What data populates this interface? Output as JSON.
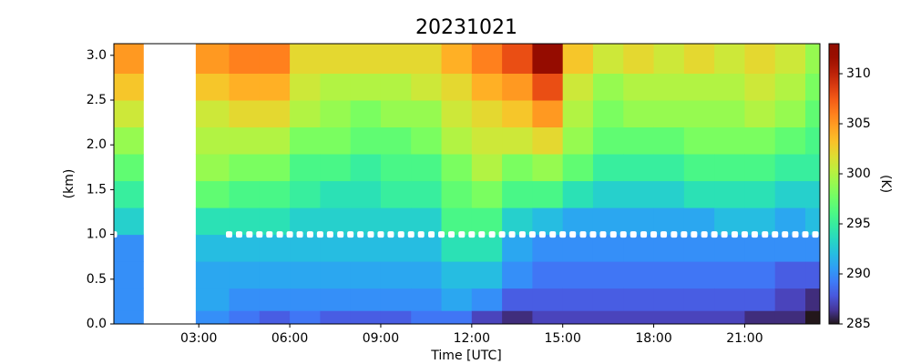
{
  "chart_data": {
    "type": "heatmap",
    "title": "20231021",
    "xlabel": "Time [UTC]",
    "ylabel": "(km)",
    "colorbar_label": "(K)",
    "colormap": "turbo",
    "xlim": [
      0.2,
      23.48
    ],
    "ylim": [
      0,
      3.13
    ],
    "clim": [
      285,
      313
    ],
    "xticks": [
      {
        "value": 3,
        "label": "03:00"
      },
      {
        "value": 6,
        "label": "06:00"
      },
      {
        "value": 9,
        "label": "09:00"
      },
      {
        "value": 12,
        "label": "12:00"
      },
      {
        "value": 15,
        "label": "15:00"
      },
      {
        "value": 18,
        "label": "18:00"
      },
      {
        "value": 21,
        "label": "21:00"
      }
    ],
    "yticks": [
      {
        "value": 0,
        "label": "0.0"
      },
      {
        "value": 0.5,
        "label": "0.5"
      },
      {
        "value": 1,
        "label": "1.0"
      },
      {
        "value": 1.5,
        "label": "1.5"
      },
      {
        "value": 2,
        "label": "2.0"
      },
      {
        "value": 2.5,
        "label": "2.5"
      },
      {
        "value": 3,
        "label": "3.0"
      }
    ],
    "cticks": [
      285,
      290,
      295,
      300,
      305,
      310
    ],
    "xbins": [
      0.2,
      1.17,
      2.9,
      4,
      5,
      6,
      7,
      8,
      9,
      10,
      11,
      12,
      13,
      14,
      15,
      16,
      17,
      18,
      19,
      20,
      21,
      22,
      23,
      23.48
    ],
    "ybins": [
      0,
      0.15,
      0.4,
      0.7,
      1.0,
      1.3,
      1.6,
      1.9,
      2.2,
      2.5,
      2.8,
      3.13
    ],
    "values": [
      [
        290,
        290,
        290,
        290,
        293,
        295,
        297,
        299,
        301,
        303,
        305
      ],
      [
        null,
        null,
        null,
        null,
        null,
        null,
        null,
        null,
        null,
        null,
        null
      ],
      [
        290,
        291,
        291,
        292,
        294,
        297,
        299,
        300,
        301,
        303,
        305
      ],
      [
        289,
        290,
        291,
        292,
        294,
        296,
        298,
        300,
        302,
        304,
        306
      ],
      [
        288,
        290,
        291,
        292,
        294,
        296,
        298,
        300,
        302,
        304,
        306
      ],
      [
        289,
        290,
        291,
        292,
        293,
        295,
        296,
        298,
        300,
        301,
        302
      ],
      [
        288,
        290,
        291,
        292,
        293,
        294,
        296,
        298,
        299,
        300,
        302
      ],
      [
        288,
        290,
        291,
        292,
        293,
        294,
        295,
        297,
        298,
        300,
        302
      ],
      [
        288,
        290,
        291,
        292,
        293,
        295,
        296,
        297,
        299,
        300,
        302
      ],
      [
        289,
        290,
        291,
        292,
        293,
        295,
        296,
        298,
        299,
        301,
        302
      ],
      [
        289,
        291,
        292,
        294,
        296,
        297,
        298,
        300,
        301,
        302,
        304
      ],
      [
        287,
        290,
        292,
        294,
        296,
        298,
        300,
        301,
        302,
        304,
        306
      ],
      [
        286,
        288,
        290,
        291,
        293,
        296,
        298,
        301,
        303,
        305,
        308
      ],
      [
        287,
        288,
        289,
        290,
        292,
        296,
        299,
        302,
        305,
        308,
        312
      ],
      [
        287,
        288,
        289,
        290,
        291,
        294,
        297,
        299,
        300,
        301,
        303
      ],
      [
        287,
        288,
        289,
        290,
        291,
        293,
        295,
        297,
        298,
        299,
        301
      ],
      [
        287,
        288,
        289,
        290,
        291,
        293,
        295,
        297,
        299,
        300,
        302
      ],
      [
        287,
        288,
        289,
        290,
        291,
        293,
        295,
        297,
        299,
        300,
        301
      ],
      [
        287,
        288,
        289,
        290,
        291,
        294,
        296,
        298,
        299,
        300,
        302
      ],
      [
        287,
        288,
        289,
        290,
        292,
        294,
        296,
        298,
        299,
        300,
        301
      ],
      [
        286,
        288,
        289,
        290,
        292,
        294,
        296,
        298,
        300,
        301,
        302
      ],
      [
        286,
        287,
        288,
        290,
        291,
        293,
        295,
        297,
        299,
        300,
        301
      ],
      [
        285,
        286,
        288,
        290,
        292,
        293,
        295,
        296,
        297,
        298,
        299
      ]
    ],
    "markers": {
      "color": "#ffffff",
      "x": [
        0.2,
        4.0,
        4.33,
        4.67,
        5.0,
        5.33,
        5.67,
        6.0,
        6.33,
        6.67,
        7.0,
        7.33,
        7.67,
        8.0,
        8.33,
        8.67,
        9.0,
        9.33,
        9.67,
        10.0,
        10.33,
        10.67,
        11.0,
        11.33,
        11.67,
        12.0,
        12.33,
        12.67,
        13.0,
        13.33,
        13.67,
        14.0,
        14.33,
        14.67,
        15.0,
        15.33,
        15.67,
        16.0,
        16.33,
        16.67,
        17.0,
        17.33,
        17.67,
        18.0,
        18.33,
        18.67,
        19.0,
        19.33,
        19.67,
        20.0,
        20.33,
        20.67,
        21.0,
        21.33,
        21.67,
        22.0,
        22.33,
        22.67,
        23.0,
        23.33
      ],
      "y": [
        1,
        1,
        1,
        1,
        1,
        1,
        1,
        1,
        1,
        1,
        1,
        1,
        1,
        1,
        1,
        1,
        1,
        1,
        1,
        1,
        1,
        1,
        1,
        1,
        1,
        1,
        1,
        1,
        1,
        1,
        1,
        1,
        1,
        1,
        1,
        1,
        1,
        1,
        1,
        1,
        1,
        1,
        1,
        1,
        1,
        1,
        1,
        1,
        1,
        1,
        1,
        1,
        1,
        1,
        1,
        1,
        1,
        1,
        1,
        1
      ]
    }
  }
}
